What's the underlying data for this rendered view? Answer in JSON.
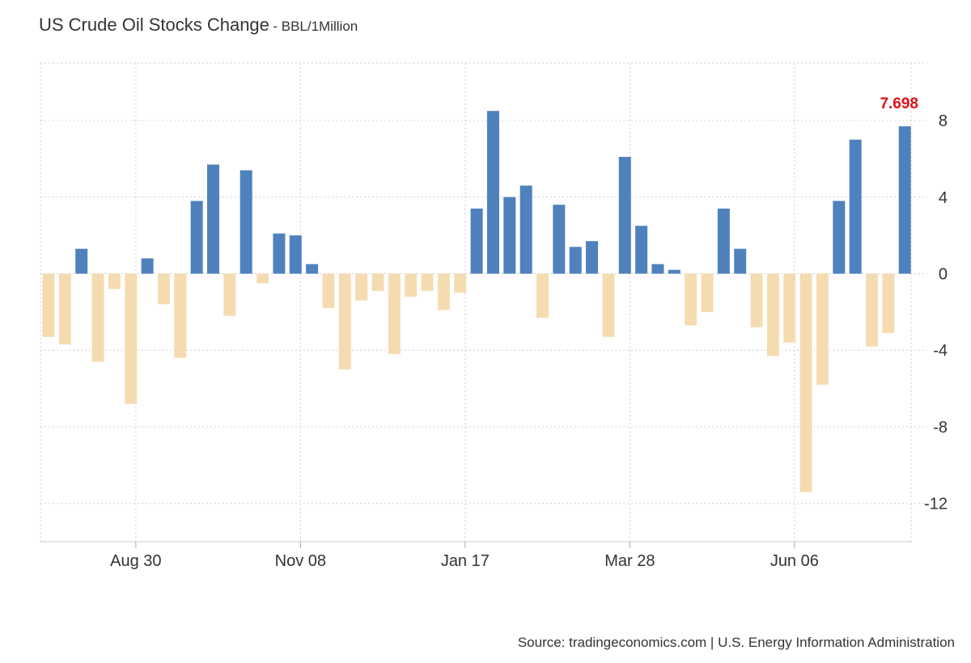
{
  "chart_data": {
    "type": "bar",
    "title": "US Crude Oil Stocks Change",
    "subtitle": "BBL/1Million",
    "source": "Source: tradingeconomics.com | U.S. Energy Information Administration",
    "ylim": [
      -14,
      11
    ],
    "y_ticks": [
      8,
      4,
      0,
      -4,
      -8,
      -12
    ],
    "x_tick_labels": [
      {
        "label": "Aug 30",
        "index": 5.3
      },
      {
        "label": "Nov 08",
        "index": 15.3
      },
      {
        "label": "Jan 17",
        "index": 25.3
      },
      {
        "label": "Mar 28",
        "index": 35.3
      },
      {
        "label": "Jun 06",
        "index": 45.3
      }
    ],
    "values": [
      -3.3,
      -3.7,
      1.3,
      -4.6,
      -0.8,
      -6.8,
      0.8,
      -1.6,
      -4.4,
      3.8,
      5.7,
      -2.2,
      5.4,
      -0.5,
      2.1,
      2.0,
      0.5,
      -1.8,
      -5.0,
      -1.4,
      -0.9,
      -4.2,
      -1.2,
      -0.9,
      -1.9,
      -1.0,
      3.4,
      8.5,
      4.0,
      4.6,
      -2.3,
      3.6,
      1.4,
      1.7,
      -3.3,
      6.1,
      2.5,
      0.5,
      0.2,
      -2.7,
      -2.0,
      3.4,
      1.3,
      -2.8,
      -4.3,
      -3.6,
      -11.4,
      -5.8,
      3.8,
      7.0,
      -3.8,
      -3.1,
      7.698
    ],
    "last_value_label": "7.698",
    "colors": {
      "positive": "#4f81bd",
      "negative": "#f5dcb0",
      "grid": "#d0d0d0",
      "highlight": "#e0121a"
    },
    "grid": true
  }
}
